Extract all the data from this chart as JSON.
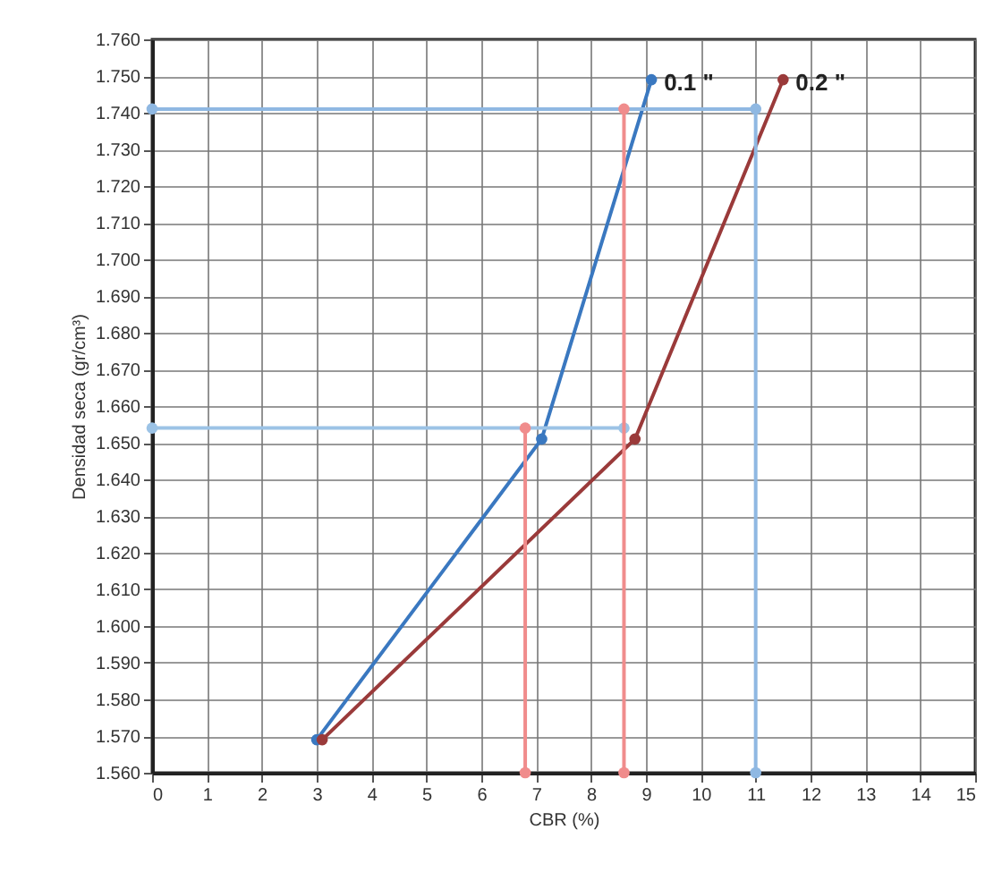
{
  "chart_data": {
    "type": "line",
    "xlabel": "CBR (%)",
    "ylabel": "Densidad seca (gr/cm³)",
    "xlim": [
      0,
      15
    ],
    "xticks": [
      0,
      1,
      2,
      3,
      4,
      5,
      6,
      7,
      8,
      9,
      10,
      11,
      12,
      13,
      14,
      15
    ],
    "ylim": [
      1.56,
      1.76
    ],
    "yticks": [
      {
        "value": 1.56,
        "label": "1.560"
      },
      {
        "value": 1.57,
        "label": "1.570"
      },
      {
        "value": 1.58,
        "label": "1.580"
      },
      {
        "value": 1.59,
        "label": "1.590"
      },
      {
        "value": 1.6,
        "label": "1.600"
      },
      {
        "value": 1.61,
        "label": "1.610"
      },
      {
        "value": 1.62,
        "label": "1.620"
      },
      {
        "value": 1.63,
        "label": "1.630"
      },
      {
        "value": 1.64,
        "label": "1.640"
      },
      {
        "value": 1.65,
        "label": "1.650"
      },
      {
        "value": 1.66,
        "label": "1.660"
      },
      {
        "value": 1.67,
        "label": "1.670"
      },
      {
        "value": 1.68,
        "label": "1.680"
      },
      {
        "value": 1.69,
        "label": "1.690"
      },
      {
        "value": 1.7,
        "label": "1.700"
      },
      {
        "value": 1.71,
        "label": "1.710"
      },
      {
        "value": 1.72,
        "label": "1.720"
      },
      {
        "value": 1.73,
        "label": "1.730"
      },
      {
        "value": 1.74,
        "label": "1.740"
      },
      {
        "value": 1.75,
        "label": "1.750"
      },
      {
        "value": 1.76,
        "label": "1.760"
      }
    ],
    "grid": true,
    "marker": "circle",
    "series": [
      {
        "name": "0.1 \"",
        "color": "#3a78c0",
        "x": [
          3.0,
          7.1,
          9.1
        ],
        "values": [
          1.569,
          1.651,
          1.749
        ]
      },
      {
        "name": "0.2 \"",
        "color": "#9a3a3a",
        "x": [
          3.1,
          8.8,
          11.5
        ],
        "values": [
          1.569,
          1.651,
          1.749
        ]
      },
      {
        "color": "#8fb8e2",
        "x": [
          0,
          11,
          11
        ],
        "values": [
          1.741,
          1.741,
          1.56
        ]
      },
      {
        "color": "#9cc3e6",
        "x": [
          0,
          8.6
        ],
        "values": [
          1.654,
          1.654
        ]
      },
      {
        "color": "#f08c8c",
        "x": [
          6.8,
          6.8
        ],
        "values": [
          1.56,
          1.654
        ]
      },
      {
        "color": "#f08c8c",
        "x": [
          8.6,
          8.6
        ],
        "values": [
          1.56,
          1.741
        ]
      }
    ]
  }
}
